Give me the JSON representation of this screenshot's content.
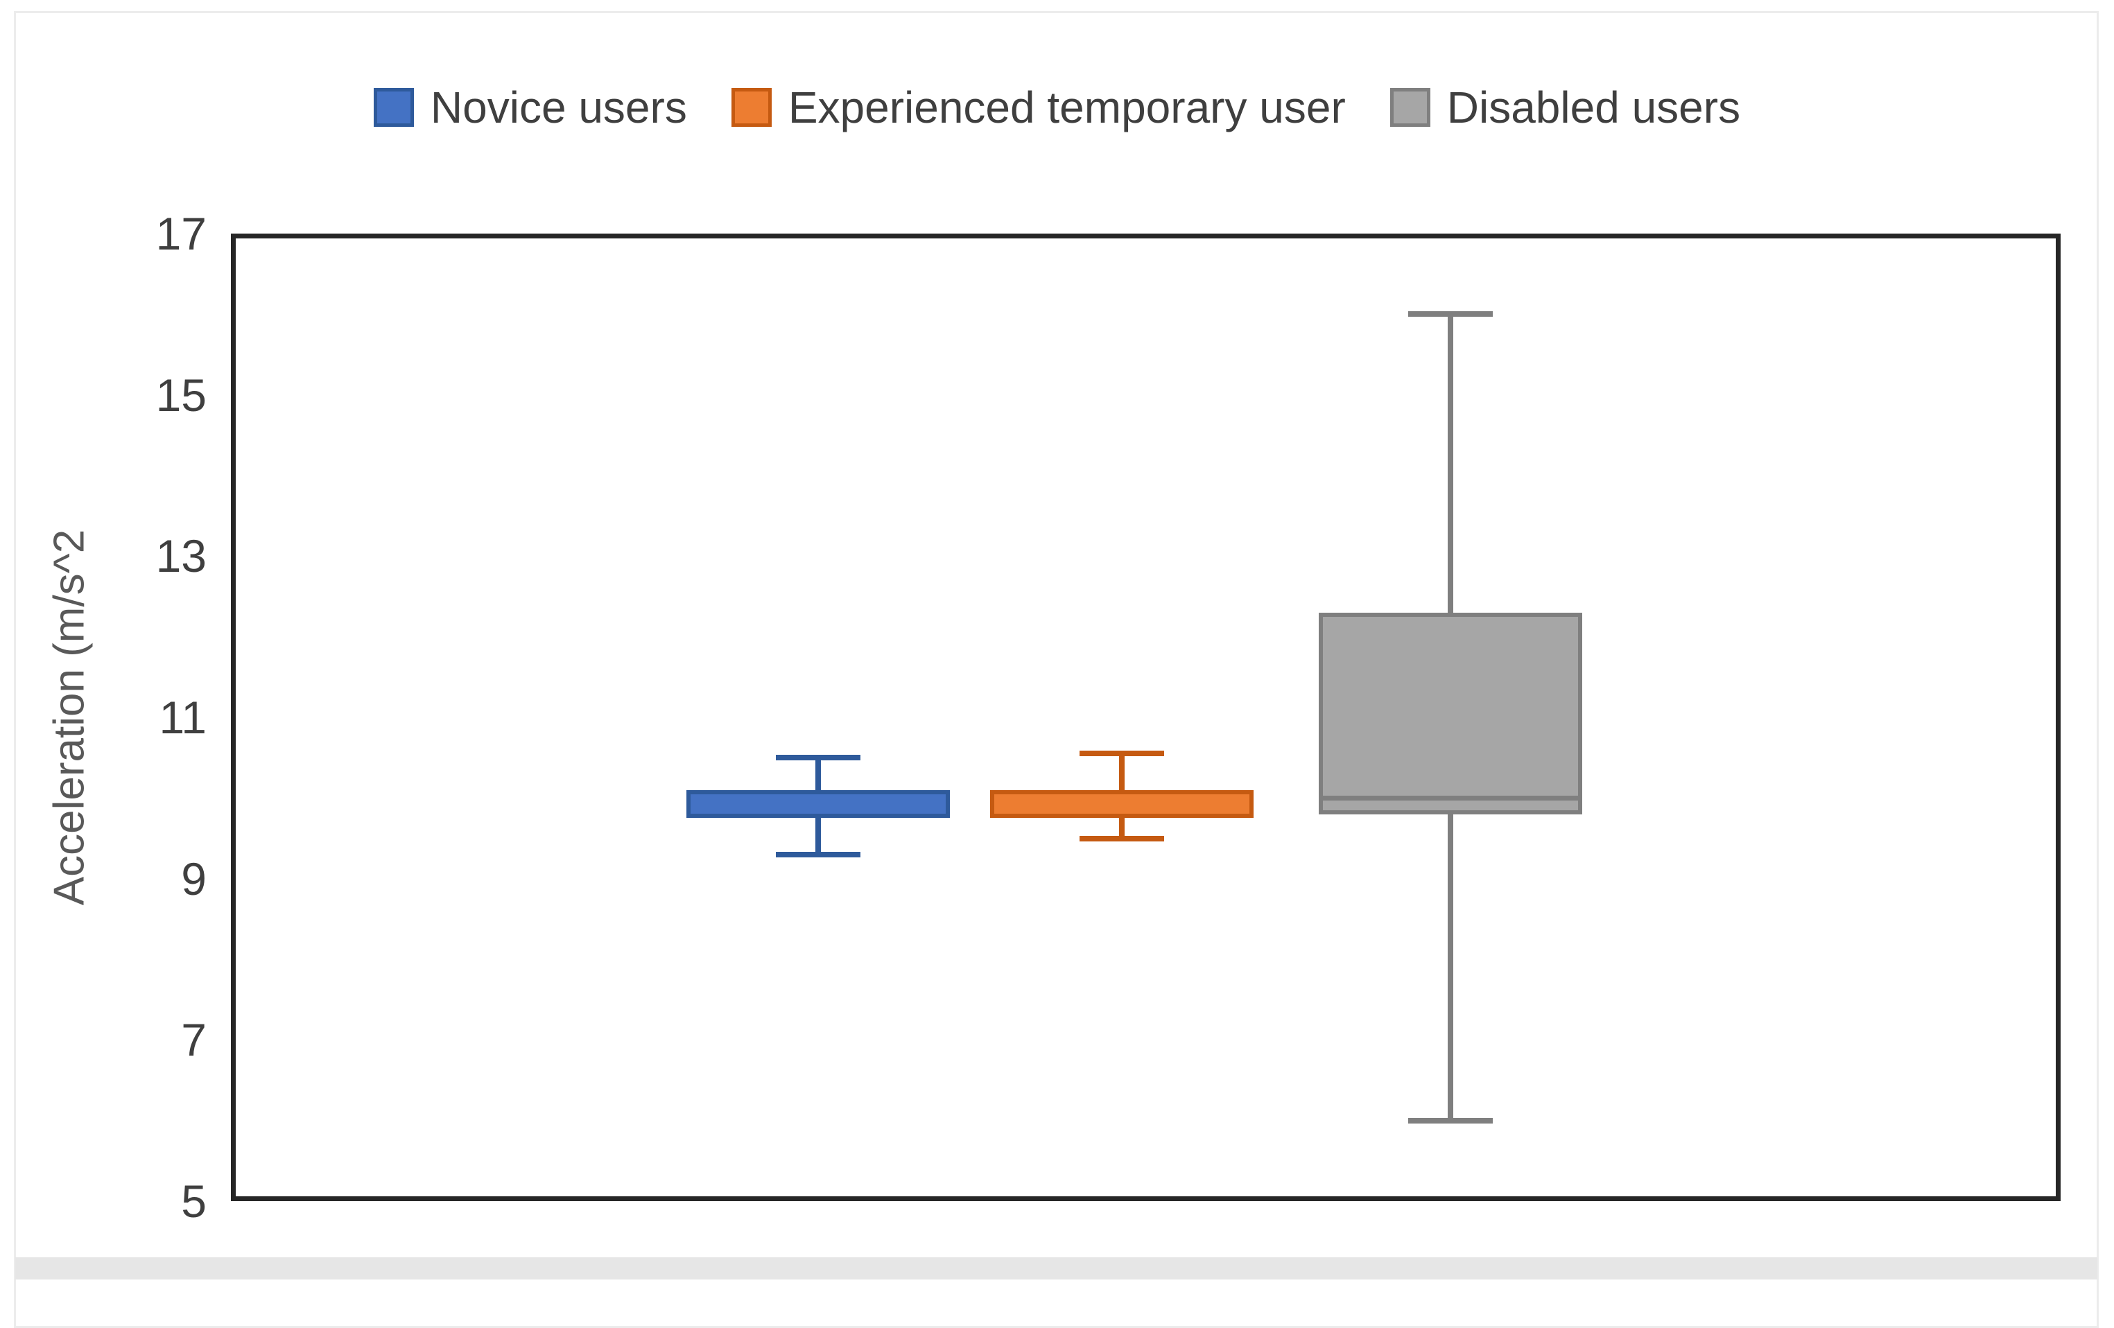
{
  "page": {
    "background": "#ffffff",
    "card_border_color": "#ececec",
    "bottom_strip_color": "#e6e6e6"
  },
  "legend": {
    "position": "top-center",
    "text_color": "#3f3f3f"
  },
  "y_axis": {
    "title": "Acceleration (m/s^2",
    "tick_labels": [
      "17",
      "15",
      "13",
      "11",
      "9",
      "7",
      "5"
    ],
    "tick_color": "#3f3f3f",
    "title_color": "#595959"
  },
  "chart_data": {
    "type": "boxplot",
    "title": "",
    "xlabel": "",
    "ylabel": "Acceleration (m/s^2",
    "ylim": [
      5,
      17
    ],
    "y_tick_interval": 2,
    "grid": true,
    "gridline_values": [
      15,
      13,
      11,
      9,
      7
    ],
    "gridline_color": "#D9D9D9",
    "frame_color": "#262626",
    "legend_position": "top",
    "series": [
      {
        "name": "Novice users",
        "min": 9.3,
        "q1": 9.75,
        "median": null,
        "q3": 10.1,
        "max": 10.5,
        "fill": "#4472C4",
        "border": "#2E5A9B"
      },
      {
        "name": "Experienced temporary user",
        "min": 9.5,
        "q1": 9.75,
        "median": null,
        "q3": 10.1,
        "max": 10.55,
        "fill": "#ED7D31",
        "border": "#C55A11"
      },
      {
        "name": "Disabled users",
        "min": 6.0,
        "q1": 9.8,
        "median": 10.0,
        "q3": 12.3,
        "max": 16.0,
        "fill": "#A6A6A6",
        "border": "#7F7F7F"
      }
    ]
  }
}
